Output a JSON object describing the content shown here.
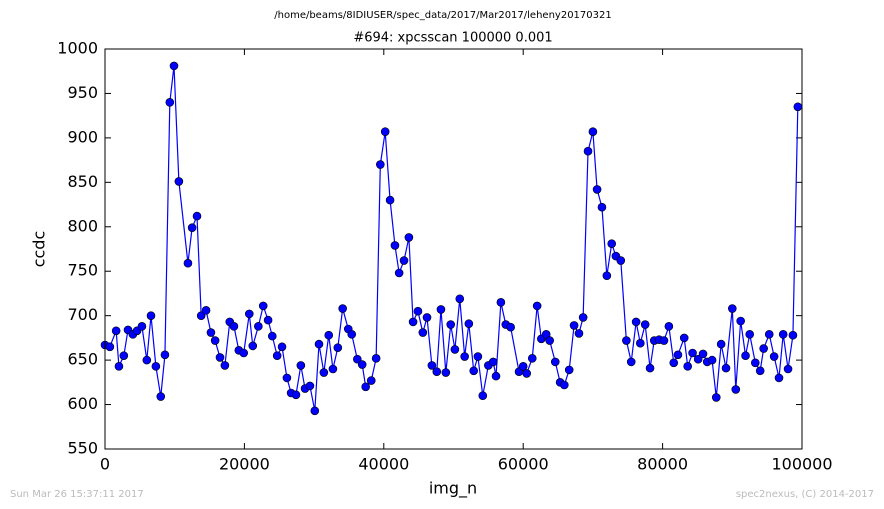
{
  "chart_data": {
    "type": "line",
    "suptitle": "/home/beams/8IDIUSER/spec_data/2017/Mar2017/leheny20170321",
    "title": "#694: xpcsscan 100000 0.001",
    "x_label": "img_n",
    "y_label": "ccdc",
    "footer_left": "Sun Mar 26 15:37:11 2017",
    "footer_right": "spec2nexus, (C) 2014-2017",
    "xlim": [
      0,
      100000
    ],
    "xticks": [
      0,
      20000,
      40000,
      60000,
      80000,
      100000
    ],
    "ylim": [
      550,
      1000
    ],
    "yticks": [
      550,
      600,
      650,
      700,
      750,
      800,
      850,
      900,
      950,
      1000
    ],
    "grid": false,
    "series": [
      {
        "name": "ccdc",
        "color": "#0000ff",
        "x": [
          0,
          700,
          1600,
          2000,
          2700,
          3300,
          4000,
          4600,
          5300,
          6000,
          6600,
          7300,
          8000,
          8600,
          9300,
          9900,
          10600,
          11900,
          12500,
          13200,
          13800,
          14500,
          15200,
          15800,
          16500,
          17200,
          17900,
          18500,
          19200,
          19900,
          20700,
          21200,
          22000,
          22700,
          23400,
          24000,
          24700,
          25400,
          26100,
          26700,
          27400,
          28100,
          28700,
          29400,
          30100,
          30700,
          31400,
          32100,
          32700,
          33400,
          34100,
          34900,
          35400,
          36200,
          36900,
          37400,
          38200,
          38900,
          39500,
          40200,
          40900,
          41600,
          42200,
          42900,
          43600,
          44200,
          44900,
          45600,
          46200,
          46900,
          47600,
          48200,
          48900,
          49600,
          50200,
          50900,
          51600,
          52200,
          52900,
          53500,
          54200,
          55000,
          55700,
          56100,
          56800,
          57500,
          58200,
          59400,
          60000,
          60500,
          61300,
          62000,
          62600,
          63300,
          63800,
          64600,
          65300,
          65900,
          66600,
          67300,
          68000,
          68600,
          69300,
          70000,
          70600,
          71300,
          72000,
          72700,
          73300,
          74000,
          74800,
          75500,
          76200,
          76800,
          77500,
          78200,
          78800,
          79500,
          80200,
          80900,
          81600,
          82200,
          83100,
          83600,
          84300,
          85100,
          85800,
          86400,
          87100,
          87700,
          88400,
          89100,
          90000,
          90500,
          91200,
          91900,
          92500,
          93300,
          94000,
          94500,
          95300,
          96000,
          96700,
          97300,
          98000,
          98700,
          99400
        ],
        "values": [
          667,
          665,
          683,
          643,
          655,
          684,
          679,
          683,
          688,
          650,
          700,
          643,
          609,
          656,
          940,
          981,
          851,
          759,
          799,
          812,
          700,
          706,
          681,
          672,
          653,
          644,
          693,
          688,
          661,
          658,
          702,
          666,
          688,
          711,
          695,
          677,
          655,
          665,
          630,
          613,
          611,
          644,
          618,
          621,
          593,
          668,
          636,
          678,
          640,
          664,
          708,
          685,
          679,
          651,
          645,
          620,
          627,
          652,
          870,
          907,
          830,
          779,
          748,
          762,
          788,
          693,
          705,
          681,
          698,
          644,
          637,
          707,
          636,
          690,
          662,
          719,
          654,
          691,
          638,
          654,
          610,
          644,
          648,
          632,
          715,
          690,
          687,
          637,
          643,
          635,
          652,
          711,
          674,
          679,
          672,
          648,
          625,
          622,
          639,
          689,
          680,
          698,
          885,
          907,
          842,
          822,
          745,
          781,
          767,
          762,
          672,
          648,
          693,
          669,
          690,
          641,
          672,
          673,
          672,
          688,
          647,
          656,
          675,
          643,
          658,
          651,
          657,
          648,
          650,
          608,
          668,
          641,
          708,
          617,
          694,
          655,
          679,
          647,
          638,
          663,
          679,
          654,
          630,
          679,
          640,
          678,
          935
        ]
      }
    ]
  }
}
